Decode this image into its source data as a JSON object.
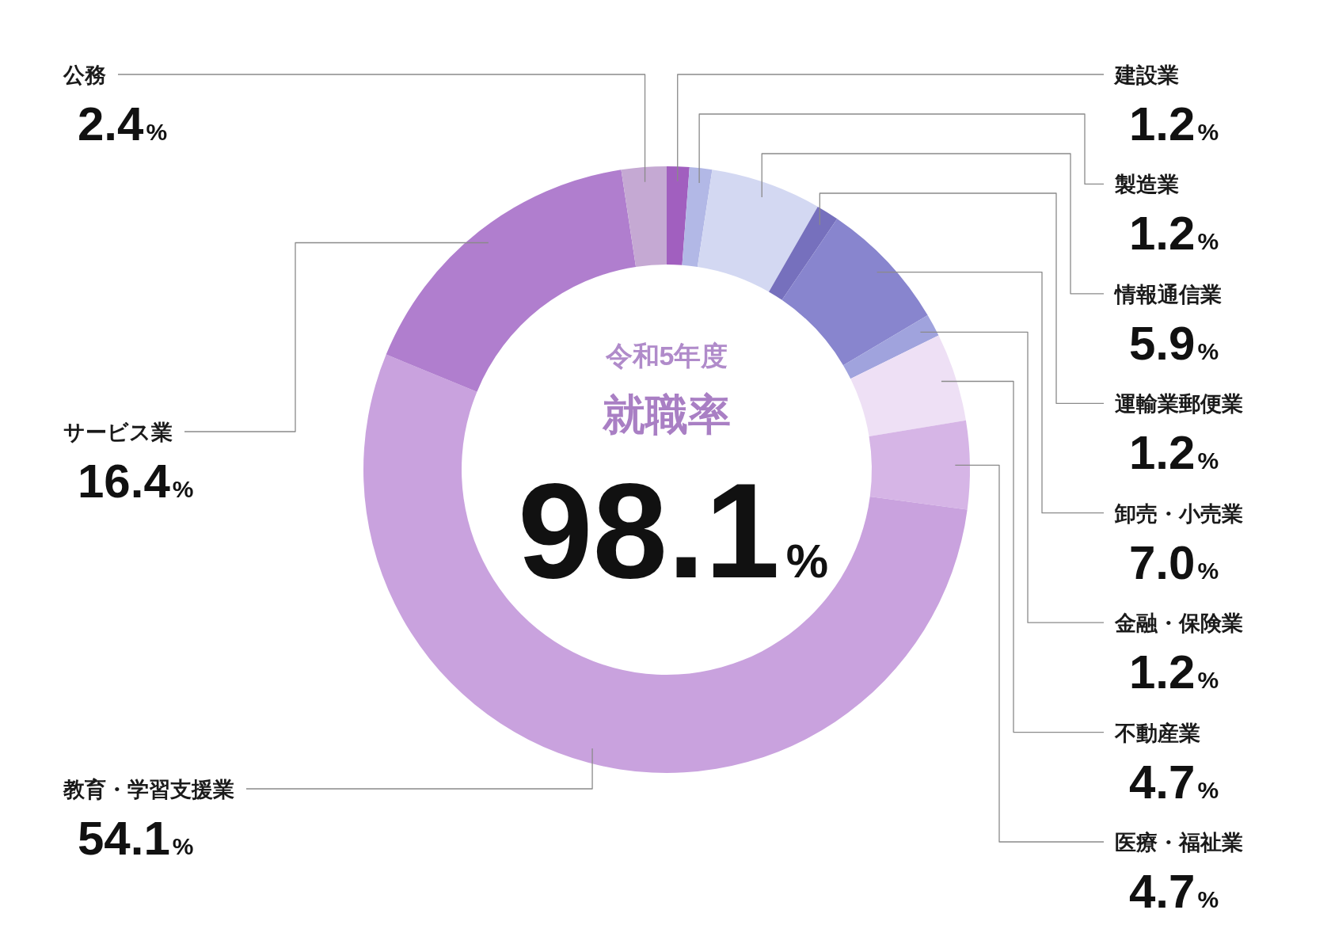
{
  "chart_data": {
    "type": "donut",
    "title": "就職率",
    "subtitle": "令和5年度",
    "annotations": [
      "98.1%"
    ],
    "categories": [
      "建設業",
      "製造業",
      "情報通信業",
      "運輸業郵便業",
      "卸売・小売業",
      "金融・保険業",
      "不動産業",
      "医療・福祉業",
      "教育・学習支援業",
      "サービス業",
      "公務"
    ],
    "values": [
      1.2,
      1.2,
      5.9,
      1.2,
      7.0,
      1.2,
      4.7,
      4.7,
      54.1,
      16.4,
      2.4
    ],
    "colors": [
      "#a15fbf",
      "#b2b8e6",
      "#d3d8f2",
      "#7670bd",
      "#8885ce",
      "#a0a3dd",
      "#eee0f5",
      "#d6b5e6",
      "#c9a2de",
      "#b07ece",
      "#c5a9d3"
    ],
    "value_labels": [
      "1.2%",
      "1.2%",
      "5.9%",
      "1.2%",
      "7.0%",
      "1.2%",
      "4.7%",
      "4.7%",
      "54.1%",
      "16.4%",
      "2.4%"
    ]
  }
}
